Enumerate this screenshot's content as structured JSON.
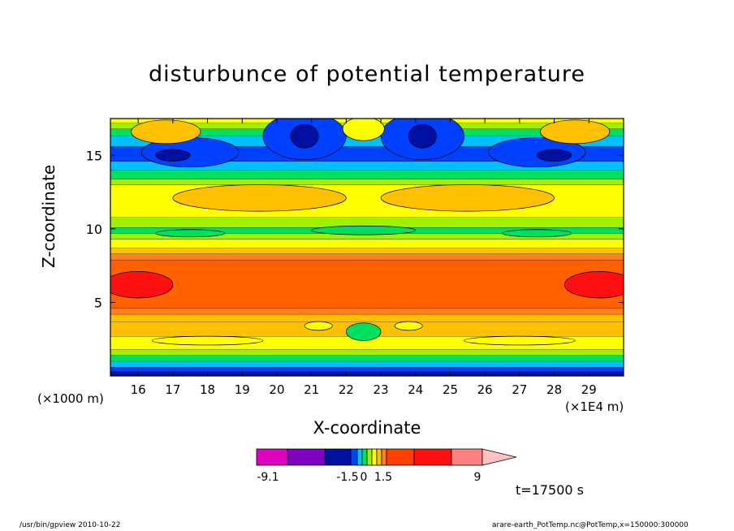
{
  "chart_data": {
    "type": "heatmap",
    "title": "disturbunce of potential temperature",
    "xlabel": "X-coordinate",
    "ylabel": "Z-coordinate",
    "x_unit_left": "(×1000 m)",
    "x_unit_right": "(×1E4 m)",
    "xlim": [
      15.2,
      30.0
    ],
    "ylim": [
      0.0,
      17.5
    ],
    "x_ticks": [
      "16",
      "17",
      "18",
      "19",
      "20",
      "21",
      "22",
      "23",
      "24",
      "25",
      "26",
      "27",
      "28",
      "29"
    ],
    "y_ticks": [
      "5",
      "10",
      "15"
    ],
    "colorbar": {
      "tick_labels": [
        "-9.1",
        "-1.5",
        "0",
        "1.5",
        "9"
      ],
      "colors": [
        "#e000c0",
        "#8000c0",
        "#0010a0",
        "#0040ff",
        "#00c0ff",
        "#00e060",
        "#a0f000",
        "#ffff00",
        "#ffc000",
        "#ff8020",
        "#ff4000",
        "#ff1010",
        "#ff8080",
        "#ffc0c0"
      ]
    },
    "bands": [
      {
        "z": 0.0,
        "color": "#0010a0"
      },
      {
        "z": 0.3,
        "color": "#0040ff"
      },
      {
        "z": 0.6,
        "color": "#00c0ff"
      },
      {
        "z": 1.0,
        "color": "#00e060"
      },
      {
        "z": 1.4,
        "color": "#a0f000"
      },
      {
        "z": 1.8,
        "color": "#ffff00"
      },
      {
        "z": 2.7,
        "color": "#ffc000"
      },
      {
        "z": 3.7,
        "color": "#ffc000"
      },
      {
        "z": 4.2,
        "color": "#ff8020"
      },
      {
        "z": 4.6,
        "color": "#ff6000"
      },
      {
        "z": 7.9,
        "color": "#ff8020"
      },
      {
        "z": 8.3,
        "color": "#ffc000"
      },
      {
        "z": 8.7,
        "color": "#ffff00"
      },
      {
        "z": 9.3,
        "color": "#a0f000"
      },
      {
        "z": 9.7,
        "color": "#00e060"
      },
      {
        "z": 10.1,
        "color": "#a0f000"
      },
      {
        "z": 10.8,
        "color": "#ffff00"
      },
      {
        "z": 13.0,
        "color": "#a0f000"
      },
      {
        "z": 13.4,
        "color": "#00e060"
      },
      {
        "z": 14.0,
        "color": "#00c0ff"
      },
      {
        "z": 14.6,
        "color": "#0040ff"
      },
      {
        "z": 15.6,
        "color": "#00c0ff"
      },
      {
        "z": 16.3,
        "color": "#00e060"
      },
      {
        "z": 16.8,
        "color": "#a0f000"
      },
      {
        "z": 17.2,
        "color": "#ffff00"
      }
    ],
    "features": [
      {
        "kind": "blob",
        "x": 20.8,
        "y": 16.3,
        "rx": 1.2,
        "ry": 1.6,
        "color": "#0040ff"
      },
      {
        "kind": "blob",
        "x": 20.8,
        "y": 16.3,
        "rx": 0.4,
        "ry": 0.8,
        "color": "#0010a0"
      },
      {
        "kind": "blob",
        "x": 24.2,
        "y": 16.3,
        "rx": 1.2,
        "ry": 1.6,
        "color": "#0040ff"
      },
      {
        "kind": "blob",
        "x": 24.2,
        "y": 16.3,
        "rx": 0.4,
        "ry": 0.8,
        "color": "#0010a0"
      },
      {
        "kind": "blob",
        "x": 17.5,
        "y": 15.2,
        "rx": 1.4,
        "ry": 1.0,
        "color": "#0040ff"
      },
      {
        "kind": "blob",
        "x": 17.0,
        "y": 15.0,
        "rx": 0.5,
        "ry": 0.4,
        "color": "#0010a0"
      },
      {
        "kind": "blob",
        "x": 27.5,
        "y": 15.2,
        "rx": 1.4,
        "ry": 1.0,
        "color": "#0040ff"
      },
      {
        "kind": "blob",
        "x": 28.0,
        "y": 15.0,
        "rx": 0.5,
        "ry": 0.4,
        "color": "#0010a0"
      },
      {
        "kind": "blob",
        "x": 16.8,
        "y": 16.6,
        "rx": 1.0,
        "ry": 0.8,
        "color": "#ffc000"
      },
      {
        "kind": "blob",
        "x": 28.6,
        "y": 16.6,
        "rx": 1.0,
        "ry": 0.8,
        "color": "#ffc000"
      },
      {
        "kind": "blob",
        "x": 22.5,
        "y": 16.8,
        "rx": 0.6,
        "ry": 0.8,
        "color": "#ffff00"
      },
      {
        "kind": "blob",
        "x": 19.5,
        "y": 12.1,
        "rx": 2.5,
        "ry": 0.9,
        "color": "#ffc000"
      },
      {
        "kind": "blob",
        "x": 25.5,
        "y": 12.1,
        "rx": 2.5,
        "ry": 0.9,
        "color": "#ffc000"
      },
      {
        "kind": "blob",
        "x": 16.0,
        "y": 6.2,
        "rx": 1.0,
        "ry": 0.9,
        "color": "#ff1010"
      },
      {
        "kind": "blob",
        "x": 29.3,
        "y": 6.2,
        "rx": 1.0,
        "ry": 0.9,
        "color": "#ff1010"
      },
      {
        "kind": "blob",
        "x": 17.5,
        "y": 9.7,
        "rx": 1.0,
        "ry": 0.25,
        "color": "#00e060"
      },
      {
        "kind": "blob",
        "x": 27.5,
        "y": 9.7,
        "rx": 1.0,
        "ry": 0.25,
        "color": "#00e060"
      },
      {
        "kind": "blob",
        "x": 22.5,
        "y": 9.9,
        "rx": 1.5,
        "ry": 0.3,
        "color": "#00e060"
      },
      {
        "kind": "blob",
        "x": 22.5,
        "y": 3.0,
        "rx": 0.5,
        "ry": 0.6,
        "color": "#00e060"
      },
      {
        "kind": "blob",
        "x": 21.2,
        "y": 3.4,
        "rx": 0.4,
        "ry": 0.3,
        "color": "#ffff00"
      },
      {
        "kind": "blob",
        "x": 23.8,
        "y": 3.4,
        "rx": 0.4,
        "ry": 0.3,
        "color": "#ffff00"
      },
      {
        "kind": "blob",
        "x": 18.0,
        "y": 2.4,
        "rx": 1.6,
        "ry": 0.3,
        "color": "#ffff00"
      },
      {
        "kind": "blob",
        "x": 27.0,
        "y": 2.4,
        "rx": 1.6,
        "ry": 0.3,
        "color": "#ffff00"
      }
    ]
  },
  "time_label": "t=17500 s",
  "footer": {
    "left": "/usr/bin/gpview   2010-10-22",
    "right": "arare-earth_PotTemp.nc@PotTemp,x=150000:300000"
  }
}
